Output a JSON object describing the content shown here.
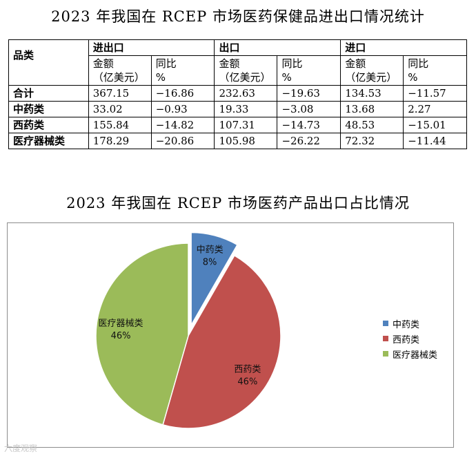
{
  "table_title": "2023 年我国在 RCEP 市场医药保健品进出口情况统计",
  "table": {
    "category_header": "品类",
    "groups": [
      "进出口",
      "出口",
      "进口"
    ],
    "amount_header_line1": "金额",
    "amount_header_line2": "（亿美元）",
    "yoy_header_line1": "同比",
    "yoy_header_line2": "%",
    "rows": [
      {
        "category": "合计",
        "values": [
          "367.15",
          "−16.86",
          "232.63",
          "−19.63",
          "134.53",
          "−11.57"
        ]
      },
      {
        "category": "中药类",
        "values": [
          "33.02",
          "−0.93",
          "19.33",
          "−3.08",
          "13.68",
          "2.27"
        ]
      },
      {
        "category": "西药类",
        "values": [
          "155.84",
          "−14.82",
          "107.31",
          "−14.73",
          "48.53",
          "−15.01"
        ]
      },
      {
        "category": "医疗器械类",
        "values": [
          "178.29",
          "−20.86",
          "105.98",
          "−26.22",
          "72.32",
          "−11.44"
        ]
      }
    ]
  },
  "chart_title": "2023 年我国在 RCEP 市场医药产品出口占比情况",
  "chart_data": {
    "type": "pie",
    "title": "2023 年我国在 RCEP 市场医药产品出口占比情况",
    "categories": [
      "中药类",
      "西药类",
      "医疗器械类"
    ],
    "values": [
      19.33,
      107.31,
      105.98
    ],
    "percent_labels": [
      "8%",
      "46%",
      "46%"
    ],
    "colors": [
      "#4f81bd",
      "#c0504d",
      "#9bbb59"
    ],
    "exploded": [
      "中药类"
    ],
    "legend_position": "right"
  },
  "watermark": "六度观察"
}
